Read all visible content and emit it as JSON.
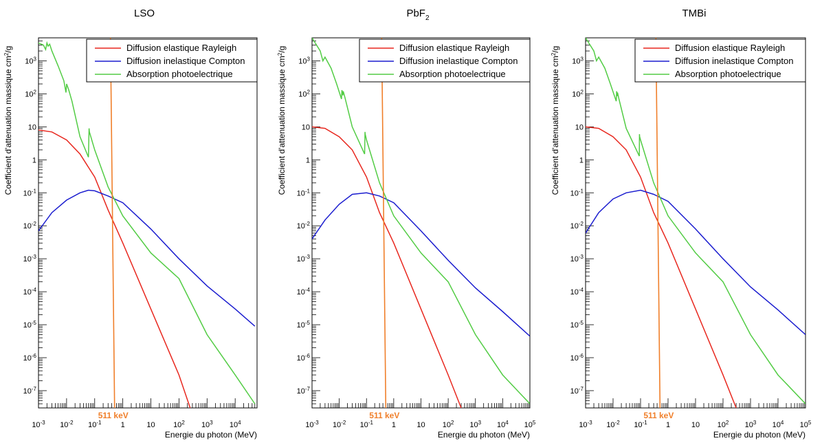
{
  "chart_data": [
    {
      "type": "line",
      "title": "LSO",
      "title_sub": "",
      "xlabel": "Energie du photon (MeV)",
      "ylabel": "Coefficient d'attenuation massique cm²/g",
      "x_scale": "log",
      "y_scale": "log",
      "xlim": [
        0.001,
        60000
      ],
      "ylim": [
        3e-08,
        5000
      ],
      "x_ticks": [
        "10⁻³",
        "10⁻²",
        "10⁻¹",
        "1",
        "10",
        "10²",
        "10³",
        "10⁴"
      ],
      "y_ticks": [
        "10⁻⁷",
        "10⁻⁶",
        "10⁻⁵",
        "10⁻⁴",
        "10⁻³",
        "10⁻²",
        "10⁻¹",
        "1",
        "10",
        "10²",
        "10³"
      ],
      "grid": false,
      "legend_position": "top-right",
      "marker_line": {
        "x": 0.511,
        "label": "511 keV",
        "color": "#f07f2a"
      },
      "series": [
        {
          "name": "Diffusion elastique Rayleigh",
          "color": "#e8271e",
          "x": [
            0.001,
            0.003,
            0.01,
            0.03,
            0.1,
            0.3,
            1,
            10,
            100,
            250
          ],
          "y": [
            8,
            7,
            4,
            1.5,
            0.3,
            0.03,
            0.003,
            3e-05,
            3e-07,
            3e-08
          ]
        },
        {
          "name": "Diffusion inelastique Compton",
          "color": "#1a1ccf",
          "x": [
            0.001,
            0.003,
            0.01,
            0.03,
            0.06,
            0.1,
            0.3,
            1,
            10,
            100,
            1000,
            10000,
            50000
          ],
          "y": [
            0.007,
            0.025,
            0.06,
            0.1,
            0.12,
            0.115,
            0.08,
            0.05,
            0.008,
            0.001,
            0.00015,
            3e-05,
            9e-06
          ]
        },
        {
          "name": "Absorption photoelectrique",
          "color": "#52cc44",
          "x": [
            0.001,
            0.0015,
            0.0018,
            0.002,
            0.0022,
            0.0025,
            0.003,
            0.005,
            0.008,
            0.0095,
            0.01,
            0.012,
            0.0155,
            0.03,
            0.06,
            0.063,
            0.065,
            0.1,
            0.3,
            1,
            10,
            100,
            1000,
            10000,
            50000
          ],
          "y": [
            3500,
            3000,
            2200,
            3500,
            2800,
            3200,
            2000,
            700,
            250,
            110,
            200,
            130,
            60,
            5,
            1.2,
            9,
            7,
            2,
            0.15,
            0.02,
            0.0015,
            0.00025,
            5e-06,
            3e-07,
            4e-08
          ]
        }
      ]
    },
    {
      "type": "line",
      "title": "PbF",
      "title_sub": "2",
      "xlabel": "Energie du photon (MeV)",
      "ylabel": "Coefficient d'attenuation massique cm²/g",
      "x_scale": "log",
      "y_scale": "log",
      "xlim": [
        0.001,
        100000
      ],
      "ylim": [
        3e-08,
        5000
      ],
      "x_ticks": [
        "10⁻³",
        "10⁻²",
        "10⁻¹",
        "1",
        "10",
        "10²",
        "10³",
        "10⁴",
        "10⁵"
      ],
      "y_ticks": [
        "10⁻⁷",
        "10⁻⁶",
        "10⁻⁵",
        "10⁻⁴",
        "10⁻³",
        "10⁻²",
        "10⁻¹",
        "1",
        "10",
        "10²",
        "10³"
      ],
      "grid": false,
      "legend_position": "top-right",
      "marker_line": {
        "x": 0.511,
        "label": "511 keV",
        "color": "#f07f2a"
      },
      "series": [
        {
          "name": "Diffusion elastique Rayleigh",
          "color": "#e8271e",
          "x": [
            0.001,
            0.003,
            0.01,
            0.03,
            0.1,
            0.3,
            1,
            10,
            100,
            300
          ],
          "y": [
            10,
            9,
            5,
            2,
            0.3,
            0.025,
            0.003,
            3e-05,
            3e-07,
            3e-08
          ]
        },
        {
          "name": "Diffusion inelastique Compton",
          "color": "#1a1ccf",
          "x": [
            0.001,
            0.003,
            0.01,
            0.03,
            0.1,
            0.3,
            1,
            10,
            100,
            1000,
            10000,
            100000
          ],
          "y": [
            0.004,
            0.015,
            0.045,
            0.09,
            0.1,
            0.08,
            0.05,
            0.007,
            0.0009,
            0.00013,
            2.5e-05,
            4.5e-06
          ]
        },
        {
          "name": "Absorption photoelectrique",
          "color": "#52cc44",
          "x": [
            0.001,
            0.002,
            0.0025,
            0.003,
            0.005,
            0.008,
            0.012,
            0.0125,
            0.0135,
            0.014,
            0.016,
            0.03,
            0.085,
            0.088,
            0.09,
            0.1,
            0.3,
            1,
            10,
            100,
            1000,
            10000,
            100000
          ],
          "y": [
            5000,
            2000,
            1000,
            1300,
            600,
            200,
            70,
            130,
            90,
            120,
            80,
            10,
            1.5,
            7,
            6,
            4,
            0.2,
            0.02,
            0.0015,
            0.0002,
            5e-06,
            3e-07,
            4e-08
          ]
        }
      ]
    },
    {
      "type": "line",
      "title": "TMBi",
      "title_sub": "",
      "xlabel": "Energie du photon (MeV)",
      "ylabel": "Coefficient d'attenuation massique cm²/g",
      "x_scale": "log",
      "y_scale": "log",
      "xlim": [
        0.001,
        100000
      ],
      "ylim": [
        3e-08,
        5000
      ],
      "x_ticks": [
        "10⁻³",
        "10⁻²",
        "10⁻¹",
        "1",
        "10",
        "10²",
        "10³",
        "10⁴",
        "10⁵"
      ],
      "y_ticks": [
        "10⁻⁷",
        "10⁻⁶",
        "10⁻⁵",
        "10⁻⁴",
        "10⁻³",
        "10⁻²",
        "10⁻¹",
        "1",
        "10",
        "10²",
        "10³"
      ],
      "grid": false,
      "legend_position": "top-right",
      "marker_line": {
        "x": 0.511,
        "label": "511 keV",
        "color": "#f07f2a"
      },
      "series": [
        {
          "name": "Diffusion elastique Rayleigh",
          "color": "#e8271e",
          "x": [
            0.001,
            0.003,
            0.01,
            0.03,
            0.1,
            0.3,
            1,
            10,
            100,
            300
          ],
          "y": [
            10,
            9,
            5,
            2,
            0.3,
            0.025,
            0.003,
            3e-05,
            3e-07,
            3e-08
          ]
        },
        {
          "name": "Diffusion inelastique Compton",
          "color": "#1a1ccf",
          "x": [
            0.001,
            0.003,
            0.01,
            0.03,
            0.1,
            0.3,
            1,
            10,
            100,
            1000,
            10000,
            100000
          ],
          "y": [
            0.006,
            0.025,
            0.065,
            0.1,
            0.12,
            0.09,
            0.055,
            0.008,
            0.001,
            0.00014,
            2.8e-05,
            5e-06
          ]
        },
        {
          "name": "Absorption photoelectrique",
          "color": "#52cc44",
          "x": [
            0.001,
            0.002,
            0.0025,
            0.003,
            0.005,
            0.008,
            0.013,
            0.0135,
            0.014,
            0.0145,
            0.016,
            0.03,
            0.09,
            0.091,
            0.093,
            0.1,
            0.3,
            1,
            10,
            100,
            1000,
            10000,
            100000
          ],
          "y": [
            5000,
            2000,
            1000,
            1300,
            600,
            200,
            60,
            120,
            85,
            110,
            75,
            9,
            1.3,
            6,
            5,
            4,
            0.2,
            0.02,
            0.0015,
            0.0002,
            5e-06,
            3e-07,
            4e-08
          ]
        }
      ]
    }
  ]
}
